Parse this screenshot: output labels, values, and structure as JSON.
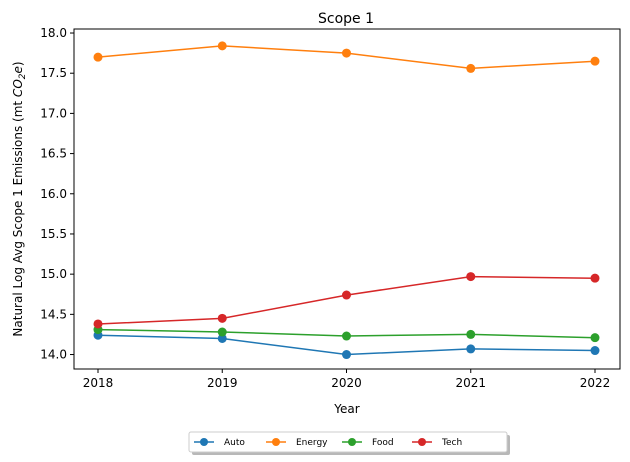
{
  "chart_data": {
    "type": "line",
    "title": "Scope 1",
    "xlabel": "Year",
    "ylabel_prefix": "Natural Log Avg Scope 1 Emissions (mt ",
    "ylabel_co": "CO",
    "ylabel_sub": "2",
    "ylabel_e": "e",
    "ylabel_suffix": ")",
    "x": [
      "2018",
      "2019",
      "2020",
      "2021",
      "2022"
    ],
    "ylim": [
      13.82,
      18.05
    ],
    "yticks": [
      "14.0",
      "14.5",
      "15.0",
      "15.5",
      "16.0",
      "16.5",
      "17.0",
      "17.5",
      "18.0"
    ],
    "legend_position": "bottom-center",
    "grid": false,
    "series": [
      {
        "name": "Auto",
        "color": "#1f77b4",
        "values": [
          14.24,
          14.2,
          14.0,
          14.07,
          14.05
        ]
      },
      {
        "name": "Energy",
        "color": "#ff7f0e",
        "values": [
          17.7,
          17.84,
          17.75,
          17.56,
          17.65
        ]
      },
      {
        "name": "Food",
        "color": "#2ca02c",
        "values": [
          14.31,
          14.28,
          14.23,
          14.25,
          14.21
        ]
      },
      {
        "name": "Tech",
        "color": "#d62728",
        "values": [
          14.38,
          14.45,
          14.74,
          14.97,
          14.95
        ]
      }
    ]
  }
}
